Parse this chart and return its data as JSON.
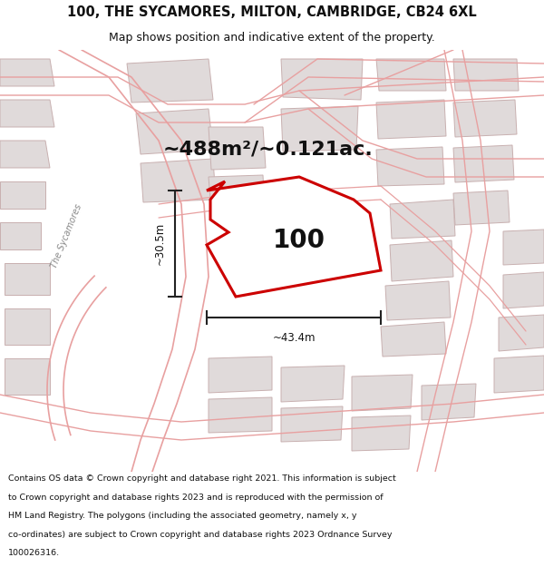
{
  "title_line1": "100, THE SYCAMORES, MILTON, CAMBRIDGE, CB24 6XL",
  "title_line2": "Map shows position and indicative extent of the property.",
  "area_text": "~488m²/~0.121ac.",
  "property_number": "100",
  "dim_vertical": "~30.5m",
  "dim_horizontal": "~43.4m",
  "footer_lines": [
    "Contains OS data © Crown copyright and database right 2021. This information is subject",
    "to Crown copyright and database rights 2023 and is reproduced with the permission of",
    "HM Land Registry. The polygons (including the associated geometry, namely x, y",
    "co-ordinates) are subject to Crown copyright and database rights 2023 Ordnance Survey",
    "100026316."
  ],
  "bg_color": "#ffffff",
  "map_bg": "#f5f5f5",
  "road_color": "#e8a0a0",
  "building_fill": "#e0dada",
  "building_edge": "#c8b0b0",
  "property_fill": "#ffffff",
  "property_edge": "#cc0000",
  "dim_color": "#222222",
  "street_label_color": "#888888",
  "text_color": "#111111",
  "figsize": [
    6.0,
    6.25
  ],
  "dpi": 100
}
